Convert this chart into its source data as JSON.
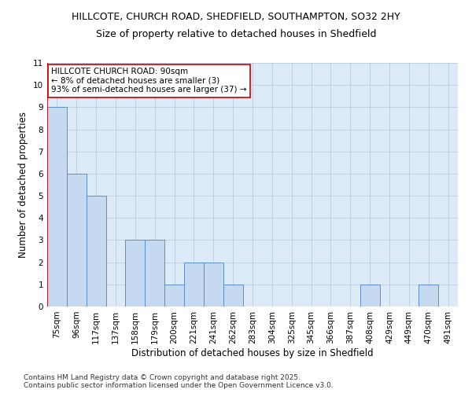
{
  "title1": "HILLCOTE, CHURCH ROAD, SHEDFIELD, SOUTHAMPTON, SO32 2HY",
  "title2": "Size of property relative to detached houses in Shedfield",
  "xlabel": "Distribution of detached houses by size in Shedfield",
  "ylabel": "Number of detached properties",
  "categories": [
    "75sqm",
    "96sqm",
    "117sqm",
    "137sqm",
    "158sqm",
    "179sqm",
    "200sqm",
    "221sqm",
    "241sqm",
    "262sqm",
    "283sqm",
    "304sqm",
    "325sqm",
    "345sqm",
    "366sqm",
    "387sqm",
    "408sqm",
    "429sqm",
    "449sqm",
    "470sqm",
    "491sqm"
  ],
  "values": [
    9,
    6,
    5,
    0,
    3,
    3,
    1,
    2,
    2,
    1,
    0,
    0,
    0,
    0,
    0,
    0,
    1,
    0,
    0,
    1,
    0
  ],
  "bar_color": "#c5d9f0",
  "bar_edge_color": "#5b8fc9",
  "highlight_line_color": "#cc0000",
  "annotation_text": "HILLCOTE CHURCH ROAD: 90sqm\n← 8% of detached houses are smaller (3)\n93% of semi-detached houses are larger (37) →",
  "annotation_box_color": "#ffffff",
  "annotation_box_edge": "#cc0000",
  "ylim": [
    0,
    11
  ],
  "yticks": [
    0,
    1,
    2,
    3,
    4,
    5,
    6,
    7,
    8,
    9,
    10,
    11
  ],
  "grid_color": "#b8cde0",
  "background_color": "#ddeaf7",
  "footer": "Contains HM Land Registry data © Crown copyright and database right 2025.\nContains public sector information licensed under the Open Government Licence v3.0.",
  "title1_fontsize": 9,
  "title2_fontsize": 9,
  "axis_label_fontsize": 8.5,
  "tick_fontsize": 7.5,
  "footer_fontsize": 6.5,
  "annotation_fontsize": 7.5
}
